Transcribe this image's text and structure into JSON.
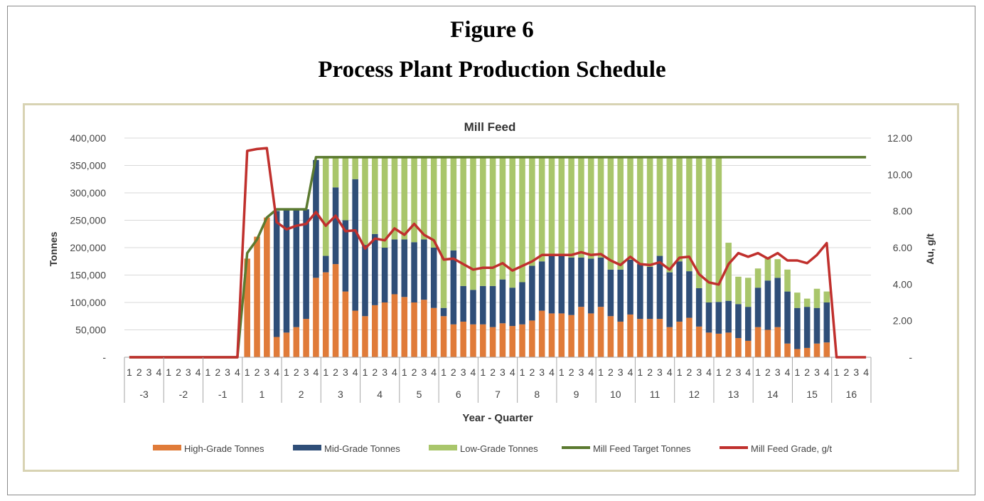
{
  "figure": {
    "number_label": "Figure 6",
    "title": "Process Plant Production Schedule"
  },
  "chart_data": {
    "type": "bar",
    "stacked": true,
    "title": "Mill Feed",
    "xlabel": "Year - Quarter",
    "ylabel": "Tonnes",
    "y2label": "Au, g/t",
    "ylim": [
      0,
      400000
    ],
    "y2lim": [
      0,
      12
    ],
    "y_ticks": [
      "-",
      "50,000",
      "100,000",
      "150,000",
      "200,000",
      "250,000",
      "300,000",
      "350,000",
      "400,000"
    ],
    "y2_ticks": [
      "-",
      "2.00",
      "4.00",
      "6.00",
      "8.00",
      "10.00",
      "12.00"
    ],
    "years": [
      "-3",
      "-2",
      "-1",
      "1",
      "2",
      "3",
      "4",
      "5",
      "6",
      "7",
      "8",
      "9",
      "10",
      "11",
      "12",
      "13",
      "14",
      "15",
      "16"
    ],
    "quarters": [
      "1",
      "2",
      "3",
      "4"
    ],
    "legend_position": "bottom",
    "colors": {
      "high": "#e07b39",
      "mid": "#2f4e78",
      "low": "#a9c66b",
      "target": "#5b7a30",
      "grade": "#c0302d",
      "grid": "#d9d9d9",
      "axis": "#a6a6a6"
    },
    "series": [
      {
        "name": "High-Grade Tonnes",
        "type": "bar",
        "values": [
          0,
          0,
          0,
          0,
          0,
          0,
          0,
          0,
          0,
          0,
          0,
          0,
          180000,
          220000,
          255000,
          37000,
          45000,
          55000,
          70000,
          145000,
          155000,
          170000,
          120000,
          85000,
          75000,
          95000,
          100000,
          115000,
          110000,
          100000,
          105000,
          90000,
          75000,
          60000,
          65000,
          60000,
          60000,
          55000,
          62000,
          57000,
          60000,
          67000,
          85000,
          80000,
          80000,
          77000,
          92000,
          80000,
          92000,
          75000,
          65000,
          78000,
          70000,
          70000,
          70000,
          55000,
          65000,
          72000,
          56000,
          45000,
          43000,
          45000,
          35000,
          30000,
          55000,
          50000,
          55000,
          25000,
          15000,
          17000,
          25000,
          27000,
          0,
          0,
          0,
          0
        ]
      },
      {
        "name": "Mid-Grade Tonnes",
        "type": "bar",
        "values": [
          0,
          0,
          0,
          0,
          0,
          0,
          0,
          0,
          0,
          0,
          0,
          0,
          0,
          0,
          0,
          230000,
          225000,
          215000,
          200000,
          215000,
          30000,
          140000,
          130000,
          240000,
          130000,
          130000,
          100000,
          100000,
          105000,
          110000,
          110000,
          110000,
          15000,
          135000,
          65000,
          63000,
          70000,
          75000,
          80000,
          70000,
          77000,
          100000,
          90000,
          105000,
          105000,
          105000,
          90000,
          100000,
          90000,
          85000,
          95000,
          100000,
          100000,
          95000,
          115000,
          100000,
          110000,
          85000,
          70000,
          55000,
          58000,
          58000,
          62000,
          62000,
          72000,
          90000,
          90000,
          95000,
          75000,
          75000,
          65000,
          73000,
          0,
          0,
          0,
          0
        ]
      },
      {
        "name": "Low-Grade Tonnes",
        "type": "bar",
        "values": [
          0,
          0,
          0,
          0,
          0,
          0,
          0,
          0,
          0,
          0,
          0,
          0,
          0,
          0,
          0,
          0,
          0,
          0,
          0,
          0,
          180000,
          55000,
          115000,
          40000,
          160000,
          140000,
          165000,
          150000,
          150000,
          155000,
          150000,
          165000,
          275000,
          170000,
          235000,
          242000,
          235000,
          235000,
          223000,
          238000,
          228000,
          198000,
          190000,
          180000,
          180000,
          183000,
          183000,
          185000,
          183000,
          205000,
          205000,
          187000,
          195000,
          200000,
          180000,
          210000,
          190000,
          208000,
          239000,
          265000,
          264000,
          106000,
          50000,
          53000,
          35000,
          40000,
          34000,
          40000,
          28000,
          15000,
          35000,
          20000,
          0,
          0,
          0,
          0
        ]
      },
      {
        "name": "Mill Feed Target Tonnes",
        "type": "line",
        "values": [
          0,
          0,
          0,
          0,
          0,
          0,
          0,
          0,
          0,
          0,
          0,
          0,
          190000,
          215000,
          255000,
          270000,
          270000,
          270000,
          270000,
          365000,
          365000,
          365000,
          365000,
          365000,
          365000,
          365000,
          365000,
          365000,
          365000,
          365000,
          365000,
          365000,
          365000,
          365000,
          365000,
          365000,
          365000,
          365000,
          365000,
          365000,
          365000,
          365000,
          365000,
          365000,
          365000,
          365000,
          365000,
          365000,
          365000,
          365000,
          365000,
          365000,
          365000,
          365000,
          365000,
          365000,
          365000,
          365000,
          365000,
          365000,
          365000,
          365000,
          365000,
          365000,
          365000,
          365000,
          365000,
          365000,
          365000,
          365000,
          365000,
          365000,
          365000,
          365000,
          365000,
          365000
        ]
      },
      {
        "name": "Mill Feed Grade, g/t",
        "type": "line",
        "axis": "y2",
        "values": [
          0,
          0,
          0,
          0,
          0,
          0,
          0,
          0,
          0,
          0,
          0,
          0,
          11.3,
          11.4,
          11.45,
          7.4,
          7.0,
          7.2,
          7.3,
          7.95,
          7.2,
          7.75,
          6.9,
          6.95,
          5.95,
          6.5,
          6.4,
          7.05,
          6.7,
          7.3,
          6.7,
          6.4,
          5.35,
          5.4,
          5.1,
          4.8,
          4.9,
          4.9,
          5.15,
          4.75,
          5.0,
          5.25,
          5.6,
          5.6,
          5.6,
          5.6,
          5.75,
          5.6,
          5.65,
          5.3,
          5.05,
          5.5,
          5.1,
          5.05,
          5.2,
          4.8,
          5.45,
          5.5,
          4.55,
          4.1,
          3.98,
          5.1,
          5.7,
          5.5,
          5.7,
          5.4,
          5.7,
          5.3,
          5.3,
          5.15,
          5.6,
          6.25,
          0,
          0,
          0,
          0
        ]
      }
    ]
  }
}
